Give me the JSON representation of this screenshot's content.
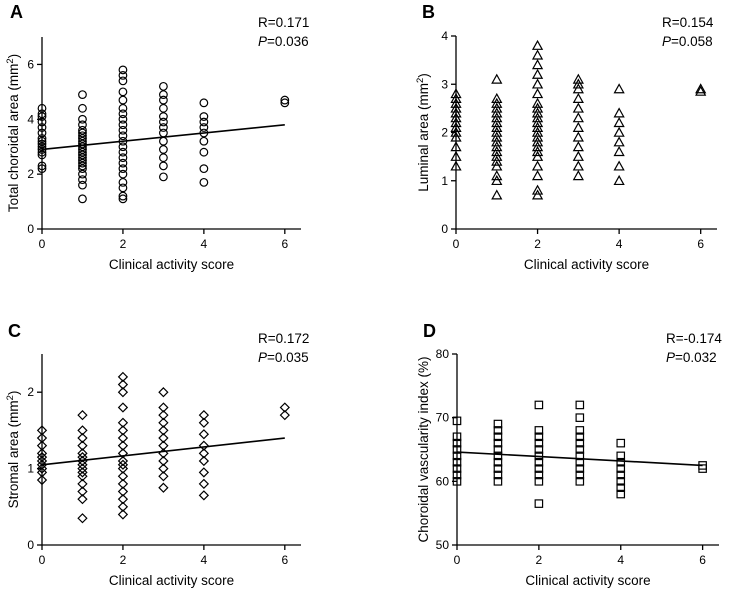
{
  "chart_data": [
    {
      "id": "A",
      "type": "scatter",
      "panel_letter": "A",
      "xlabel": "Clinical activity score",
      "ylabel_main": "Total choroidal area (mm",
      "ylabel_sup": "2",
      "ylabel_end": ")",
      "ylabel_full": "Total choroidal area (mm2)",
      "xlim": [
        0,
        6.4
      ],
      "ylim": [
        0,
        7
      ],
      "xticks": [
        0,
        2,
        4,
        6
      ],
      "xtick_labels": [
        "0",
        "2",
        "4",
        "6"
      ],
      "yticks": [
        0,
        2,
        4,
        6
      ],
      "ytick_labels": [
        "0",
        "2",
        "4",
        "6"
      ],
      "marker": "circle",
      "stat_r": "R=0.171",
      "stat_p_letter": "P",
      "stat_p_value": "=0.036",
      "stat_p_full": "P=0.036",
      "fit": {
        "x0": 0,
        "y0": 2.9,
        "x1": 6,
        "y1": 3.8
      },
      "groups": [
        {
          "x": 0,
          "y": [
            2.2,
            2.3,
            2.7,
            2.8,
            2.9,
            3.0,
            3.1,
            3.2,
            3.3,
            3.5,
            3.7,
            3.9,
            4.1,
            4.2,
            4.4
          ]
        },
        {
          "x": 1,
          "y": [
            1.1,
            1.6,
            1.8,
            2.0,
            2.2,
            2.3,
            2.4,
            2.5,
            2.6,
            2.7,
            2.8,
            2.9,
            3.0,
            3.1,
            3.2,
            3.3,
            3.4,
            3.5,
            3.6,
            3.8,
            4.0,
            4.4,
            4.9
          ]
        },
        {
          "x": 2,
          "y": [
            1.1,
            1.2,
            1.5,
            1.7,
            2.0,
            2.2,
            2.4,
            2.6,
            2.8,
            3.0,
            3.2,
            3.4,
            3.6,
            3.8,
            4.0,
            4.2,
            4.4,
            4.7,
            5.0,
            5.4,
            5.6,
            5.8
          ]
        },
        {
          "x": 3,
          "y": [
            1.9,
            2.3,
            2.6,
            2.9,
            3.2,
            3.5,
            3.7,
            3.9,
            4.1,
            4.4,
            4.7,
            4.9,
            5.2
          ]
        },
        {
          "x": 4,
          "y": [
            1.7,
            2.2,
            2.8,
            3.2,
            3.5,
            3.7,
            3.9,
            4.1,
            4.6
          ]
        },
        {
          "x": 6,
          "y": [
            4.6,
            4.7
          ]
        }
      ]
    },
    {
      "id": "B",
      "type": "scatter",
      "panel_letter": "B",
      "xlabel": "Clinical activity score",
      "ylabel_main": "Luminal area (mm",
      "ylabel_sup": "2",
      "ylabel_end": ")",
      "ylabel_full": "Luminal area (mm2)",
      "xlim": [
        0,
        6.4
      ],
      "ylim": [
        0,
        4
      ],
      "xticks": [
        0,
        2,
        4,
        6
      ],
      "xtick_labels": [
        "0",
        "2",
        "4",
        "6"
      ],
      "yticks": [
        0,
        1,
        2,
        3,
        4
      ],
      "ytick_labels": [
        "0",
        "1",
        "2",
        "3",
        "4"
      ],
      "marker": "triangle",
      "stat_r": "R=0.154",
      "stat_p_letter": "P",
      "stat_p_value": "=0.058",
      "stat_p_full": "P=0.058",
      "fit": null,
      "groups": [
        {
          "x": 0,
          "y": [
            1.3,
            1.5,
            1.7,
            1.9,
            2.0,
            2.1,
            2.2,
            2.3,
            2.4,
            2.5,
            2.6,
            2.7,
            2.8
          ]
        },
        {
          "x": 1,
          "y": [
            0.7,
            1.0,
            1.1,
            1.3,
            1.4,
            1.5,
            1.6,
            1.7,
            1.8,
            1.9,
            2.0,
            2.1,
            2.2,
            2.3,
            2.4,
            2.5,
            2.6,
            2.7,
            3.1
          ]
        },
        {
          "x": 2,
          "y": [
            0.7,
            0.8,
            1.1,
            1.3,
            1.5,
            1.6,
            1.7,
            1.8,
            1.9,
            2.0,
            2.1,
            2.2,
            2.3,
            2.4,
            2.5,
            2.6,
            2.8,
            3.0,
            3.2,
            3.4,
            3.6,
            3.8
          ]
        },
        {
          "x": 3,
          "y": [
            1.1,
            1.3,
            1.5,
            1.7,
            1.9,
            2.1,
            2.3,
            2.5,
            2.7,
            2.9,
            3.0,
            3.1
          ]
        },
        {
          "x": 4,
          "y": [
            1.0,
            1.3,
            1.6,
            1.8,
            2.0,
            2.2,
            2.4,
            2.9
          ]
        },
        {
          "x": 6,
          "y": [
            2.85,
            2.9
          ]
        }
      ]
    },
    {
      "id": "C",
      "type": "scatter",
      "panel_letter": "C",
      "xlabel": "Clinical activity score",
      "ylabel_main": "Stromal area (mm",
      "ylabel_sup": "2",
      "ylabel_end": ")",
      "ylabel_full": "Stromal area (mm2)",
      "xlim": [
        0,
        6.4
      ],
      "ylim": [
        0,
        2.5
      ],
      "xticks": [
        0,
        2,
        4,
        6
      ],
      "xtick_labels": [
        "0",
        "2",
        "4",
        "6"
      ],
      "yticks": [
        0,
        1,
        2
      ],
      "ytick_labels": [
        "0",
        "1",
        "2"
      ],
      "marker": "diamond",
      "stat_r": "R=0.172",
      "stat_p_letter": "P",
      "stat_p_value": "=0.035",
      "stat_p_full": "P=0.035",
      "fit": {
        "x0": 0,
        "y0": 1.05,
        "x1": 6,
        "y1": 1.4
      },
      "groups": [
        {
          "x": 0,
          "y": [
            0.85,
            0.95,
            1.0,
            1.05,
            1.1,
            1.15,
            1.2,
            1.3,
            1.4,
            1.5
          ]
        },
        {
          "x": 1,
          "y": [
            0.35,
            0.6,
            0.7,
            0.8,
            0.9,
            0.95,
            1.0,
            1.05,
            1.1,
            1.15,
            1.2,
            1.3,
            1.4,
            1.5,
            1.7
          ]
        },
        {
          "x": 2,
          "y": [
            0.4,
            0.5,
            0.6,
            0.7,
            0.8,
            0.9,
            1.0,
            1.05,
            1.1,
            1.2,
            1.3,
            1.4,
            1.5,
            1.6,
            1.8,
            2.0,
            2.1,
            2.2
          ]
        },
        {
          "x": 3,
          "y": [
            0.75,
            0.9,
            1.0,
            1.1,
            1.2,
            1.3,
            1.4,
            1.5,
            1.6,
            1.7,
            1.8,
            2.0
          ]
        },
        {
          "x": 4,
          "y": [
            0.65,
            0.8,
            0.95,
            1.1,
            1.2,
            1.3,
            1.45,
            1.6,
            1.7
          ]
        },
        {
          "x": 6,
          "y": [
            1.7,
            1.8
          ]
        }
      ]
    },
    {
      "id": "D",
      "type": "scatter",
      "panel_letter": "D",
      "xlabel": "Clinical activity score",
      "ylabel_main": "Choroidal vascularity index (%)",
      "ylabel_sup": "",
      "ylabel_end": "",
      "ylabel_full": "Choroidal vascularity index (%)",
      "xlim": [
        0,
        6.4
      ],
      "ylim": [
        50,
        80
      ],
      "xticks": [
        0,
        2,
        4,
        6
      ],
      "xtick_labels": [
        "0",
        "2",
        "4",
        "6"
      ],
      "yticks": [
        50,
        60,
        70,
        80
      ],
      "ytick_labels": [
        "50",
        "60",
        "70",
        "80"
      ],
      "marker": "square",
      "stat_r": "R=-0.174",
      "stat_p_letter": "P",
      "stat_p_value": "=0.032",
      "stat_p_full": "P=0.032",
      "fit": {
        "x0": 0,
        "y0": 64.6,
        "x1": 6,
        "y1": 62.5
      },
      "groups": [
        {
          "x": 0,
          "y": [
            60,
            61,
            62,
            63,
            64,
            65,
            66,
            67,
            69.5
          ]
        },
        {
          "x": 1,
          "y": [
            60,
            61,
            62,
            63,
            64,
            65,
            66,
            67,
            68,
            69
          ]
        },
        {
          "x": 2,
          "y": [
            56.5,
            60,
            61,
            62,
            63,
            64,
            65,
            66,
            67,
            68,
            72
          ]
        },
        {
          "x": 3,
          "y": [
            60,
            61,
            62,
            63,
            64,
            65,
            66,
            67,
            68,
            70,
            72
          ]
        },
        {
          "x": 4,
          "y": [
            58,
            59,
            60,
            61,
            62,
            63,
            64,
            66
          ]
        },
        {
          "x": 6,
          "y": [
            62,
            62.5
          ]
        }
      ]
    }
  ]
}
